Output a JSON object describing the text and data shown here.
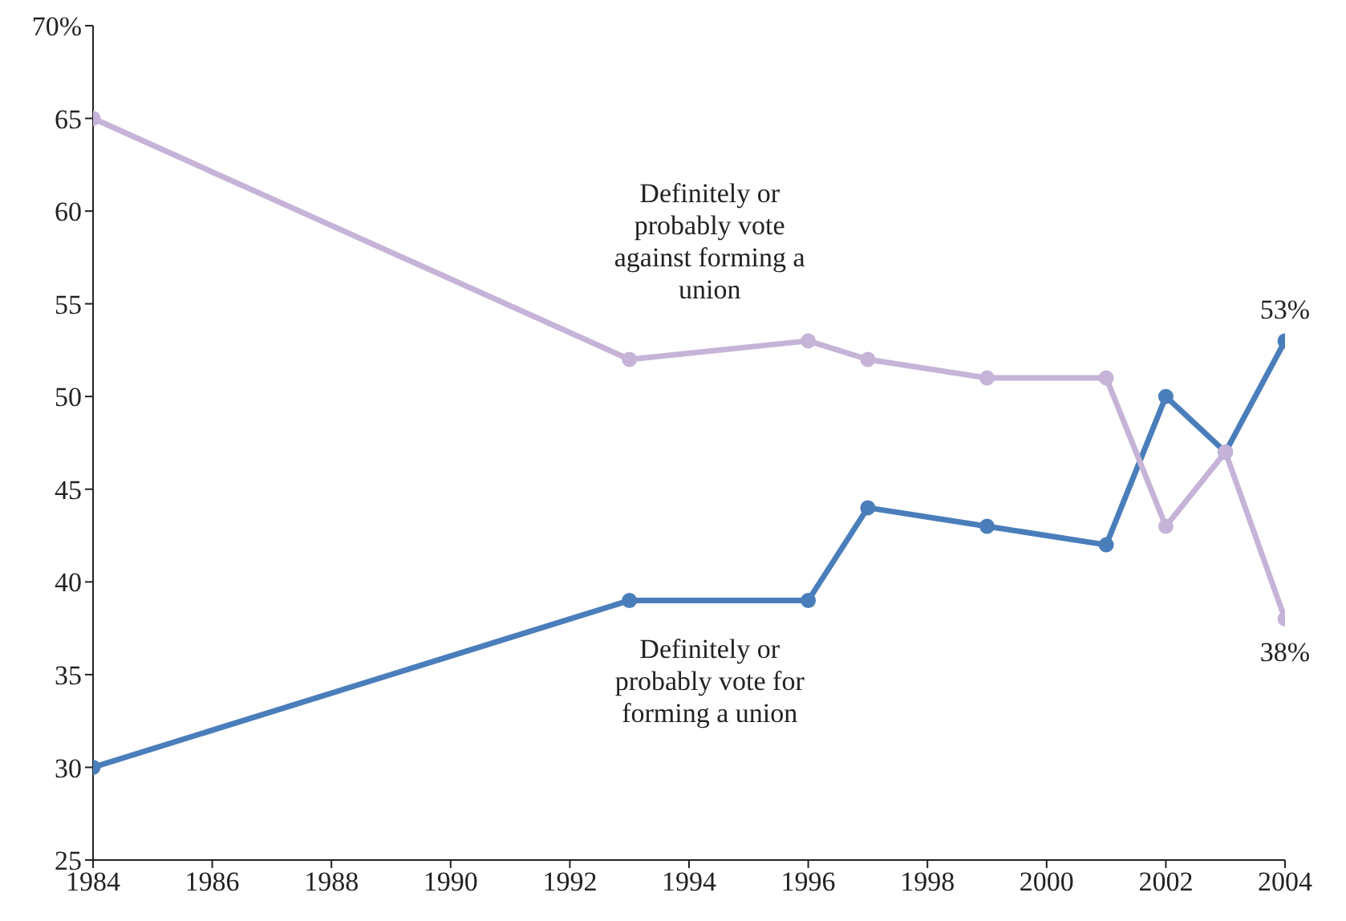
{
  "chart_data": {
    "type": "line",
    "x": [
      1984,
      1993,
      1996,
      1997,
      1999,
      2001,
      2002,
      2003,
      2004
    ],
    "series": [
      {
        "name": "Definitely or probably vote for forming a union",
        "color": "#4a7ebb",
        "values": [
          30,
          39,
          39,
          44,
          43,
          42,
          50,
          47,
          53
        ],
        "value_labels": [
          null,
          null,
          null,
          null,
          null,
          null,
          null,
          null,
          "53%"
        ]
      },
      {
        "name": "Definitely or probably vote against forming a union",
        "color": "#c6b3d7",
        "values": [
          65,
          52,
          53,
          52,
          51,
          51,
          43,
          47,
          38
        ],
        "value_labels": [
          null,
          null,
          null,
          null,
          null,
          null,
          null,
          null,
          "38%"
        ]
      }
    ],
    "xlim": [
      1984,
      2004
    ],
    "xticks": [
      1984,
      1986,
      1988,
      1990,
      1992,
      1994,
      1996,
      1998,
      2000,
      2002,
      2004
    ],
    "ylim": [
      25,
      70
    ],
    "yticks": [
      25,
      30,
      35,
      40,
      45,
      50,
      55,
      60,
      65,
      {
        "value": 70,
        "label": "70%"
      }
    ],
    "marker": "circle",
    "line_style": "solid"
  }
}
